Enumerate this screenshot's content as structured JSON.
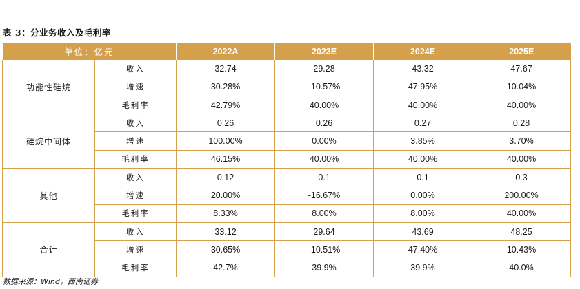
{
  "title": "表 3：分业务收入及毛利率",
  "header": {
    "unit": "单位：亿元",
    "years": [
      "2022A",
      "2023E",
      "2024E",
      "2025E"
    ]
  },
  "groups": [
    {
      "name": "功能性硅烷",
      "rows": [
        {
          "metric": "收入",
          "values": [
            "32.74",
            "29.28",
            "43.32",
            "47.67"
          ]
        },
        {
          "metric": "增速",
          "values": [
            "30.28%",
            "-10.57%",
            "47.95%",
            "10.04%"
          ]
        },
        {
          "metric": "毛利率",
          "values": [
            "42.79%",
            "40.00%",
            "40.00%",
            "40.00%"
          ]
        }
      ]
    },
    {
      "name": "硅烷中间体",
      "rows": [
        {
          "metric": "收入",
          "values": [
            "0.26",
            "0.26",
            "0.27",
            "0.28"
          ]
        },
        {
          "metric": "增速",
          "values": [
            "100.00%",
            "0.00%",
            "3.85%",
            "3.70%"
          ]
        },
        {
          "metric": "毛利率",
          "values": [
            "46.15%",
            "40.00%",
            "40.00%",
            "40.00%"
          ]
        }
      ]
    },
    {
      "name": "其他",
      "rows": [
        {
          "metric": "收入",
          "values": [
            "0.12",
            "0.1",
            "0.1",
            "0.3"
          ]
        },
        {
          "metric": "增速",
          "values": [
            "20.00%",
            "-16.67%",
            "0.00%",
            "200.00%"
          ]
        },
        {
          "metric": "毛利率",
          "values": [
            "8.33%",
            "8.00%",
            "8.00%",
            "40.00%"
          ]
        }
      ]
    },
    {
      "name": "合计",
      "rows": [
        {
          "metric": "收入",
          "values": [
            "33.12",
            "29.64",
            "43.69",
            "48.25"
          ]
        },
        {
          "metric": "增速",
          "values": [
            "30.65%",
            "-10.51%",
            "47.40%",
            "10.43%"
          ]
        },
        {
          "metric": "毛利率",
          "values": [
            "42.7%",
            "39.9%",
            "39.9%",
            "40.0%"
          ]
        }
      ]
    }
  ],
  "source": "数据来源：Wind，西南证券",
  "colors": {
    "header_bg": "#d4a04c",
    "border": "#d4a04c",
    "header_text": "#ffffff"
  }
}
